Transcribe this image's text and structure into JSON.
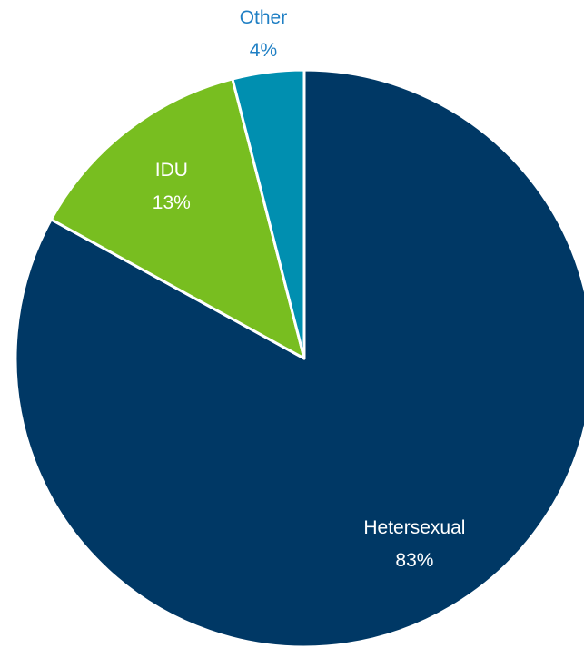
{
  "chart_data": {
    "type": "pie",
    "categories": [
      "Hetersexual",
      "IDU",
      "Other"
    ],
    "values": [
      83,
      13,
      4
    ],
    "value_labels": [
      "83%",
      "13%",
      "4%"
    ],
    "colors": [
      "#003865",
      "#78be20",
      "#008fb0"
    ]
  }
}
